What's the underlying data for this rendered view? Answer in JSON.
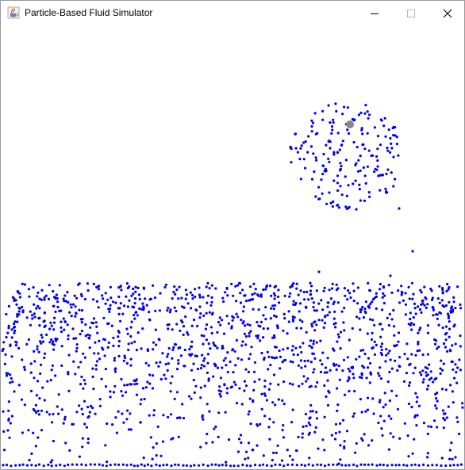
{
  "window": {
    "title": "Particle-Based Fluid Simulator",
    "icon": "java-cup-icon"
  },
  "controls": {
    "minimize": "minimize-icon",
    "maximize": "maximize-icon",
    "close": "close-icon"
  },
  "simulation": {
    "particle_color": "#0000ee",
    "emitter_color": "#888888",
    "background_color": "#ffffff"
  }
}
